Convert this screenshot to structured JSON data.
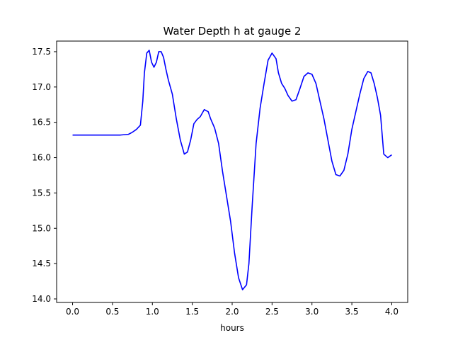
{
  "chart_data": {
    "type": "line",
    "title": "Water Depth h at gauge 2",
    "xlabel": "hours",
    "ylabel": "",
    "xlim": [
      -0.2,
      4.2
    ],
    "ylim": [
      13.95,
      17.65
    ],
    "xticks": [
      0.0,
      0.5,
      1.0,
      1.5,
      2.0,
      2.5,
      3.0,
      3.5,
      4.0
    ],
    "xtick_labels": [
      "0.0",
      "0.5",
      "1.0",
      "1.5",
      "2.0",
      "2.5",
      "3.0",
      "3.5",
      "4.0"
    ],
    "yticks": [
      14.0,
      14.5,
      15.0,
      15.5,
      16.0,
      16.5,
      17.0,
      17.5
    ],
    "ytick_labels": [
      "14.0",
      "14.5",
      "15.0",
      "15.5",
      "16.0",
      "16.5",
      "17.0",
      "17.5"
    ],
    "grid": false,
    "legend": "none",
    "series": [
      {
        "color": "#0000ff",
        "x": [
          0.0,
          0.3,
          0.6,
          0.7,
          0.75,
          0.8,
          0.85,
          0.88,
          0.9,
          0.93,
          0.96,
          0.99,
          1.02,
          1.05,
          1.08,
          1.11,
          1.14,
          1.17,
          1.2,
          1.25,
          1.3,
          1.35,
          1.4,
          1.44,
          1.48,
          1.52,
          1.56,
          1.6,
          1.65,
          1.7,
          1.73,
          1.78,
          1.83,
          1.88,
          1.93,
          1.98,
          2.03,
          2.08,
          2.13,
          2.18,
          2.21,
          2.25,
          2.3,
          2.35,
          2.4,
          2.45,
          2.5,
          2.55,
          2.58,
          2.62,
          2.66,
          2.7,
          2.75,
          2.8,
          2.85,
          2.9,
          2.95,
          3.0,
          3.05,
          3.1,
          3.15,
          3.2,
          3.25,
          3.3,
          3.35,
          3.4,
          3.45,
          3.5,
          3.55,
          3.6,
          3.65,
          3.7,
          3.74,
          3.78,
          3.82,
          3.86,
          3.9,
          3.95,
          4.0
        ],
        "y": [
          16.32,
          16.32,
          16.32,
          16.33,
          16.36,
          16.4,
          16.46,
          16.8,
          17.2,
          17.48,
          17.52,
          17.35,
          17.28,
          17.35,
          17.5,
          17.5,
          17.42,
          17.25,
          17.1,
          16.9,
          16.55,
          16.25,
          16.05,
          16.08,
          16.25,
          16.48,
          16.54,
          16.58,
          16.68,
          16.65,
          16.55,
          16.42,
          16.2,
          15.8,
          15.45,
          15.1,
          14.65,
          14.3,
          14.13,
          14.2,
          14.5,
          15.3,
          16.2,
          16.7,
          17.05,
          17.38,
          17.48,
          17.4,
          17.2,
          17.05,
          16.98,
          16.88,
          16.8,
          16.82,
          16.98,
          17.15,
          17.2,
          17.18,
          17.05,
          16.8,
          16.55,
          16.25,
          15.95,
          15.76,
          15.74,
          15.82,
          16.05,
          16.4,
          16.65,
          16.9,
          17.12,
          17.22,
          17.2,
          17.05,
          16.85,
          16.6,
          16.05,
          16.0,
          16.04
        ]
      }
    ]
  }
}
